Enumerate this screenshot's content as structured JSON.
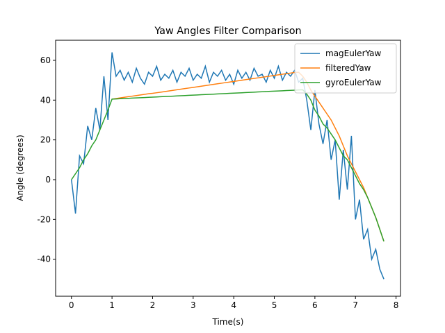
{
  "chart_data": {
    "type": "line",
    "title": "Yaw Angles Filter Comparison",
    "x_label": "Time(s)",
    "y_label": "Angle (degrees)",
    "x": [
      0,
      0.1,
      0.2,
      0.3,
      0.4,
      0.5,
      0.6,
      0.7,
      0.8,
      0.9,
      1,
      1.1,
      1.2,
      1.3,
      1.4,
      1.5,
      1.6,
      1.7,
      1.8,
      1.9,
      2,
      2.1,
      2.2,
      2.3,
      2.4,
      2.5,
      2.6,
      2.7,
      2.8,
      2.9,
      3,
      3.1,
      3.2,
      3.3,
      3.4,
      3.5,
      3.6,
      3.7,
      3.8,
      3.9,
      4,
      4.1,
      4.2,
      4.3,
      4.4,
      4.5,
      4.6,
      4.7,
      4.8,
      4.9,
      5,
      5.1,
      5.2,
      5.3,
      5.4,
      5.5,
      5.6,
      5.7,
      5.8,
      5.9,
      6,
      6.1,
      6.2,
      6.3,
      6.4,
      6.5,
      6.6,
      6.7,
      6.8,
      6.9,
      7,
      7.1,
      7.2,
      7.3,
      7.4,
      7.5,
      7.6,
      7.7
    ],
    "series": [
      {
        "name": "magEulerYaw",
        "color": "#1f77b4",
        "values": [
          0,
          -17,
          12,
          8,
          27,
          20,
          36,
          25,
          52,
          30,
          64,
          52,
          55,
          50,
          54,
          49,
          56,
          51,
          48,
          54,
          52,
          57,
          50,
          53,
          51,
          55,
          49,
          54,
          52,
          56,
          50,
          53,
          51,
          57,
          49,
          54,
          52,
          55,
          50,
          53,
          48,
          55,
          51,
          54,
          50,
          56,
          52,
          53,
          49,
          55,
          51,
          57,
          50,
          54,
          52,
          55,
          49,
          51,
          40,
          25,
          45,
          28,
          18,
          30,
          10,
          20,
          -10,
          15,
          -5,
          22,
          -20,
          -10,
          -30,
          -25,
          -40,
          -35,
          -45,
          -50
        ]
      },
      {
        "name": "filteredYaw",
        "color": "#ff7f0e",
        "values": [
          null,
          null,
          null,
          null,
          null,
          null,
          null,
          null,
          null,
          null,
          40.5,
          40.8,
          41.1,
          41.4,
          41.7,
          42,
          42.3,
          42.6,
          42.9,
          43.2,
          43.4,
          43.7,
          44,
          44.3,
          44.6,
          44.9,
          45.2,
          45.5,
          45.8,
          46.1,
          46.4,
          46.7,
          47,
          47.3,
          47.6,
          47.9,
          48.2,
          48.5,
          48.8,
          49.1,
          49.4,
          49.7,
          50,
          50.3,
          50.6,
          50.9,
          51.2,
          51.5,
          51.8,
          52.1,
          52.4,
          52.7,
          53,
          53.3,
          53.6,
          53.9,
          54,
          52,
          49,
          45,
          42,
          39,
          36,
          33,
          30,
          26,
          22,
          17,
          12,
          8,
          4,
          0,
          -4,
          -9,
          -14,
          -19,
          -25,
          -31
        ]
      },
      {
        "name": "gyroEulerYaw",
        "color": "#2ca02c",
        "values": [
          0,
          3,
          6,
          10,
          13,
          17,
          20,
          25,
          30,
          35,
          40.5,
          40.6,
          40.7,
          40.8,
          40.9,
          41,
          41.1,
          41.2,
          41.3,
          41.4,
          41.5,
          41.6,
          41.7,
          41.8,
          41.9,
          42,
          42.1,
          42.2,
          42.3,
          42.4,
          42.5,
          42.6,
          42.7,
          42.8,
          42.9,
          43,
          43.1,
          43.2,
          43.3,
          43.4,
          43.5,
          43.6,
          43.7,
          43.8,
          43.9,
          44,
          44.1,
          44.2,
          44.3,
          44.4,
          44.5,
          44.6,
          44.7,
          44.8,
          44.9,
          45,
          45.1,
          45.2,
          43,
          40,
          35,
          32,
          28,
          26,
          23,
          20,
          16,
          12,
          10,
          6,
          2,
          -2,
          -5,
          -9,
          -14,
          -19,
          -25,
          -31
        ]
      }
    ],
    "xlim": [
      -0.39,
      8.11
    ],
    "ylim": [
      -58.6,
      70.1
    ],
    "xticks": [
      0,
      1,
      2,
      3,
      4,
      5,
      6,
      7,
      8
    ],
    "yticks": [
      -40,
      -20,
      0,
      20,
      40,
      60
    ],
    "legend": "upper right"
  }
}
